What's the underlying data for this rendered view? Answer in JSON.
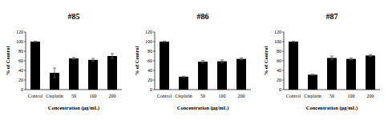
{
  "chart_data": [
    {
      "type": "bar",
      "title": "#85",
      "categories": [
        "Control",
        "Cisplatin",
        "50",
        "100",
        "200"
      ],
      "values": [
        100,
        35,
        65,
        62,
        70
      ],
      "errors": [
        1,
        10,
        2,
        3,
        5
      ],
      "color": "#000000",
      "ylim": [
        0,
        120
      ],
      "yticks": [
        0,
        20,
        40,
        60,
        80,
        100,
        120
      ],
      "x_label": "Concentration (μg/mL)",
      "y_label": "% of Control"
    },
    {
      "type": "bar",
      "title": "#86",
      "categories": [
        "Control",
        "Cisplatin",
        "50",
        "100",
        "200"
      ],
      "values": [
        100,
        27,
        58,
        59,
        64
      ],
      "errors": [
        1,
        1,
        3,
        3,
        2
      ],
      "color": "#000000",
      "ylim": [
        0,
        120
      ],
      "yticks": [
        0,
        20,
        40,
        60,
        80,
        100,
        120
      ],
      "x_label": "Concentration (μg/mL)",
      "y_label": "% of Control"
    },
    {
      "type": "bar",
      "title": "#87",
      "categories": [
        "Control",
        "Cisplatin",
        "50",
        "100",
        "200"
      ],
      "values": [
        100,
        31,
        66,
        64,
        71
      ],
      "errors": [
        1,
        1,
        4,
        2,
        2
      ],
      "color": "#000000",
      "ylim": [
        0,
        120
      ],
      "yticks": [
        0,
        20,
        40,
        60,
        80,
        100,
        120
      ],
      "x_label": "Concentration (μg/mL)",
      "y_label": "% of Control"
    }
  ]
}
